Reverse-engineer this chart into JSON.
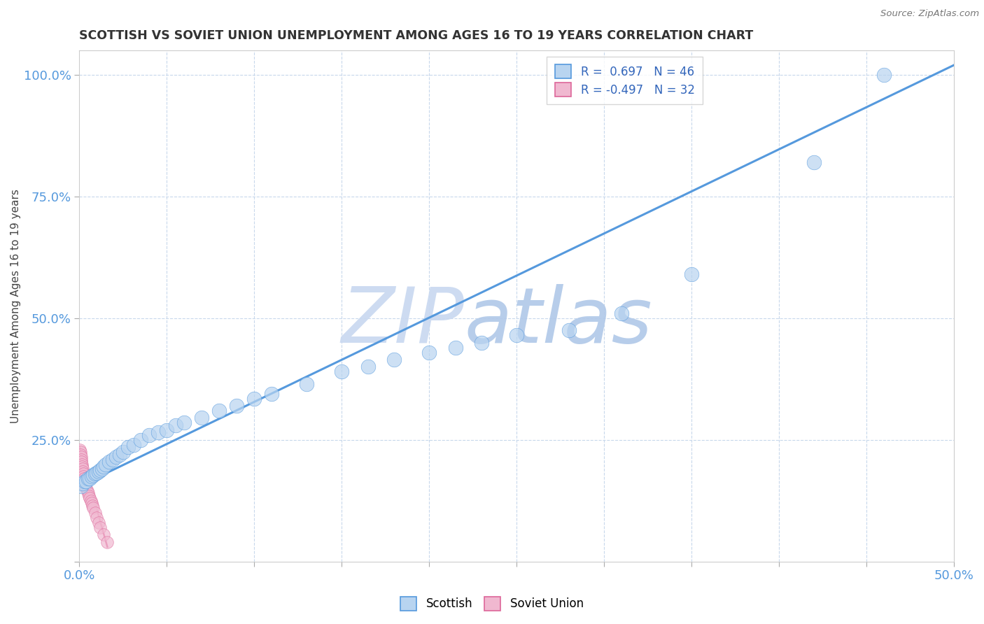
{
  "title": "SCOTTISH VS SOVIET UNION UNEMPLOYMENT AMONG AGES 16 TO 19 YEARS CORRELATION CHART",
  "source": "Source: ZipAtlas.com",
  "ylabel": "Unemployment Among Ages 16 to 19 years",
  "xlim": [
    0.0,
    0.5
  ],
  "ylim": [
    0.0,
    1.05
  ],
  "xticks": [
    0.0,
    0.05,
    0.1,
    0.15,
    0.2,
    0.25,
    0.3,
    0.35,
    0.4,
    0.45,
    0.5
  ],
  "yticks": [
    0.0,
    0.25,
    0.5,
    0.75,
    1.0
  ],
  "r_scottish": 0.697,
  "n_scottish": 46,
  "r_soviet": -0.497,
  "n_soviet": 32,
  "scottish_color": "#b8d4f0",
  "soviet_color": "#f0b8d0",
  "trend_color_scottish": "#5599dd",
  "trend_color_soviet": "#dd6699",
  "background_color": "#ffffff",
  "grid_color": "#c8d8ec",
  "watermark_color": "#ccddf5",
  "scottish_points_x": [
    0.001,
    0.002,
    0.003,
    0.004,
    0.005,
    0.006,
    0.007,
    0.008,
    0.009,
    0.01,
    0.011,
    0.012,
    0.013,
    0.014,
    0.015,
    0.017,
    0.019,
    0.021,
    0.023,
    0.025,
    0.028,
    0.031,
    0.035,
    0.04,
    0.045,
    0.05,
    0.055,
    0.06,
    0.07,
    0.08,
    0.09,
    0.1,
    0.11,
    0.13,
    0.15,
    0.165,
    0.18,
    0.2,
    0.215,
    0.23,
    0.25,
    0.28,
    0.31,
    0.35,
    0.42,
    0.46
  ],
  "scottish_points_y": [
    0.155,
    0.16,
    0.165,
    0.165,
    0.17,
    0.17,
    0.175,
    0.178,
    0.18,
    0.182,
    0.185,
    0.188,
    0.19,
    0.195,
    0.2,
    0.205,
    0.21,
    0.215,
    0.22,
    0.225,
    0.235,
    0.24,
    0.25,
    0.26,
    0.265,
    0.27,
    0.28,
    0.285,
    0.295,
    0.31,
    0.32,
    0.335,
    0.345,
    0.365,
    0.39,
    0.4,
    0.415,
    0.43,
    0.44,
    0.45,
    0.465,
    0.475,
    0.51,
    0.59,
    0.82,
    1.0
  ],
  "soviet_points_x": [
    0.0003,
    0.0005,
    0.0007,
    0.0009,
    0.001,
    0.0012,
    0.0014,
    0.0016,
    0.0018,
    0.002,
    0.0022,
    0.0024,
    0.0026,
    0.0028,
    0.003,
    0.0032,
    0.0035,
    0.004,
    0.0045,
    0.005,
    0.0055,
    0.006,
    0.0065,
    0.007,
    0.0075,
    0.008,
    0.009,
    0.01,
    0.011,
    0.012,
    0.014,
    0.016
  ],
  "soviet_points_y": [
    0.23,
    0.225,
    0.22,
    0.215,
    0.21,
    0.205,
    0.2,
    0.195,
    0.19,
    0.185,
    0.18,
    0.175,
    0.17,
    0.165,
    0.162,
    0.158,
    0.155,
    0.15,
    0.145,
    0.14,
    0.135,
    0.13,
    0.125,
    0.12,
    0.115,
    0.11,
    0.1,
    0.09,
    0.08,
    0.07,
    0.055,
    0.04
  ],
  "trend_line_s_x0": 0.0,
  "trend_line_s_x1": 0.5,
  "trend_line_s_y0": 0.155,
  "trend_line_s_y1": 1.02,
  "trend_line_v_x0": 0.0,
  "trend_line_v_x1": 0.016,
  "trend_line_v_y0": 0.235,
  "trend_line_v_y1": 0.03
}
